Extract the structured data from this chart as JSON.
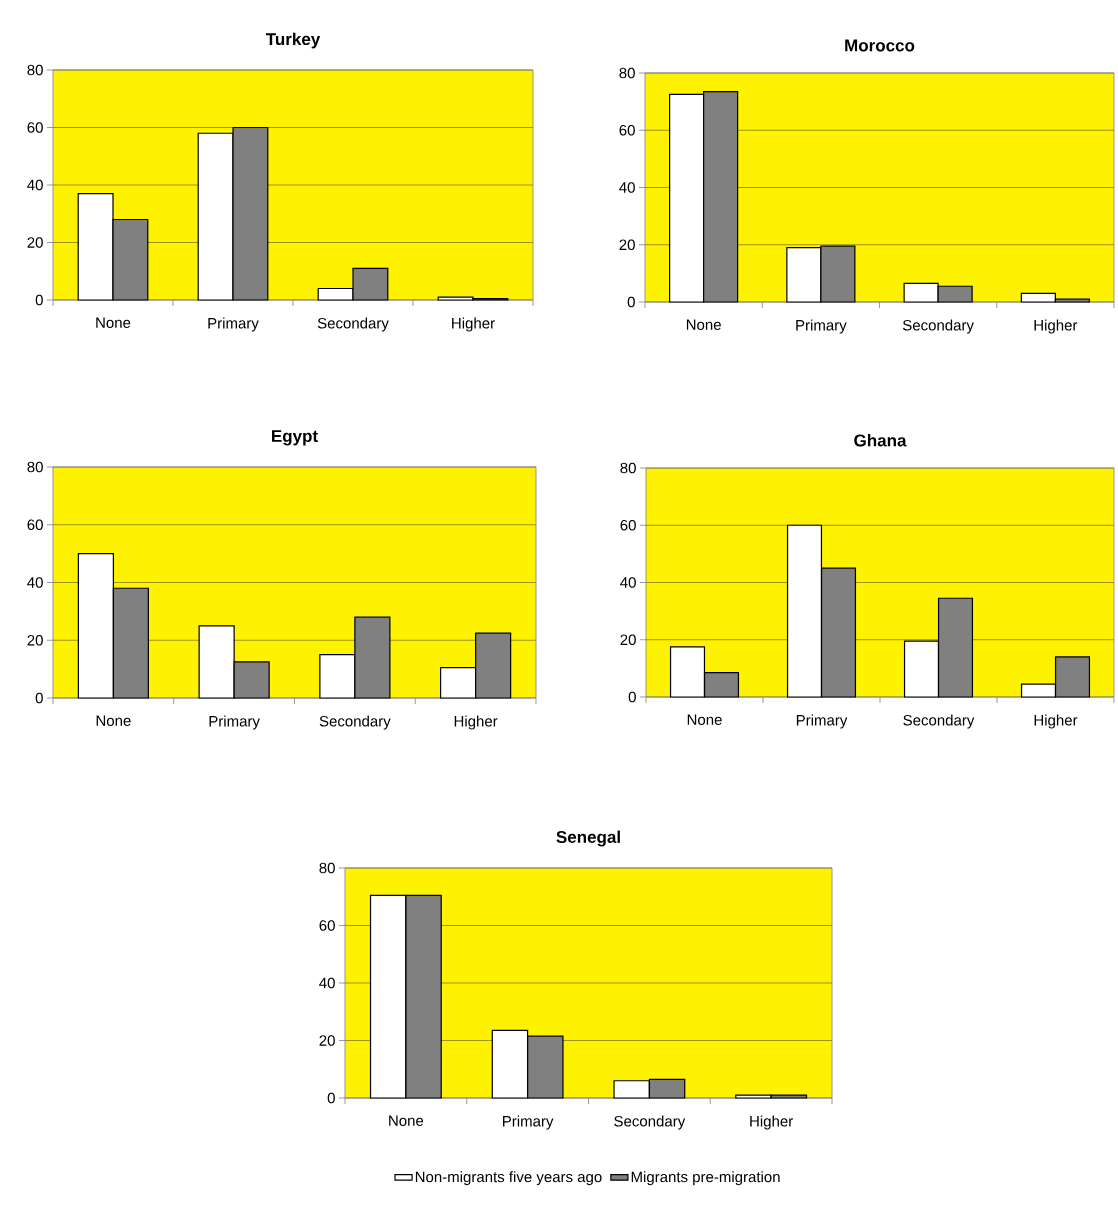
{
  "chart_data": [
    {
      "type": "bar",
      "title": "Turkey",
      "categories": [
        "None",
        "Primary",
        "Secondary",
        "Higher"
      ],
      "ylim": [
        0,
        80
      ],
      "yticks": [
        0,
        20,
        40,
        60,
        80
      ],
      "grid": "y",
      "series": [
        {
          "color": "#ffffff",
          "values": [
            37,
            58,
            4,
            1
          ]
        },
        {
          "color": "#808080",
          "values": [
            28,
            60,
            11,
            0.5
          ]
        }
      ]
    },
    {
      "type": "bar",
      "title": "Morocco",
      "categories": [
        "None",
        "Primary",
        "Secondary",
        "Higher"
      ],
      "ylim": [
        0,
        80
      ],
      "yticks": [
        0,
        20,
        40,
        60,
        80
      ],
      "grid": "y",
      "series": [
        {
          "color": "#ffffff",
          "values": [
            72.5,
            19,
            6.5,
            3
          ]
        },
        {
          "color": "#808080",
          "values": [
            73.5,
            19.5,
            5.5,
            1
          ]
        }
      ]
    },
    {
      "type": "bar",
      "title": "Egypt",
      "categories": [
        "None",
        "Primary",
        "Secondary",
        "Higher"
      ],
      "ylim": [
        0,
        80
      ],
      "yticks": [
        0,
        20,
        40,
        60,
        80
      ],
      "grid": "y",
      "series": [
        {
          "color": "#ffffff",
          "values": [
            50,
            25,
            15,
            10.5
          ]
        },
        {
          "color": "#808080",
          "values": [
            38,
            12.5,
            28,
            22.5
          ]
        }
      ]
    },
    {
      "type": "bar",
      "title": "Ghana",
      "categories": [
        "None",
        "Primary",
        "Secondary",
        "Higher"
      ],
      "ylim": [
        0,
        80
      ],
      "yticks": [
        0,
        20,
        40,
        60,
        80
      ],
      "grid": "y",
      "series": [
        {
          "color": "#ffffff",
          "values": [
            17.5,
            60,
            19.5,
            4.5
          ]
        },
        {
          "color": "#808080",
          "values": [
            8.5,
            45,
            34.5,
            14
          ]
        }
      ]
    },
    {
      "type": "bar",
      "title": "Senegal",
      "categories": [
        "None",
        "Primary",
        "Secondary",
        "Higher"
      ],
      "ylim": [
        0,
        80
      ],
      "yticks": [
        0,
        20,
        40,
        60,
        80
      ],
      "grid": "y",
      "legend": "bottom",
      "series": [
        {
          "name": "Non-migrants five years ago",
          "color": "#ffffff",
          "values": [
            70.5,
            23.5,
            6,
            1
          ]
        },
        {
          "name": "Migrants pre-migration",
          "color": "#808080",
          "values": [
            70.5,
            21.5,
            6.5,
            1
          ]
        }
      ]
    }
  ]
}
